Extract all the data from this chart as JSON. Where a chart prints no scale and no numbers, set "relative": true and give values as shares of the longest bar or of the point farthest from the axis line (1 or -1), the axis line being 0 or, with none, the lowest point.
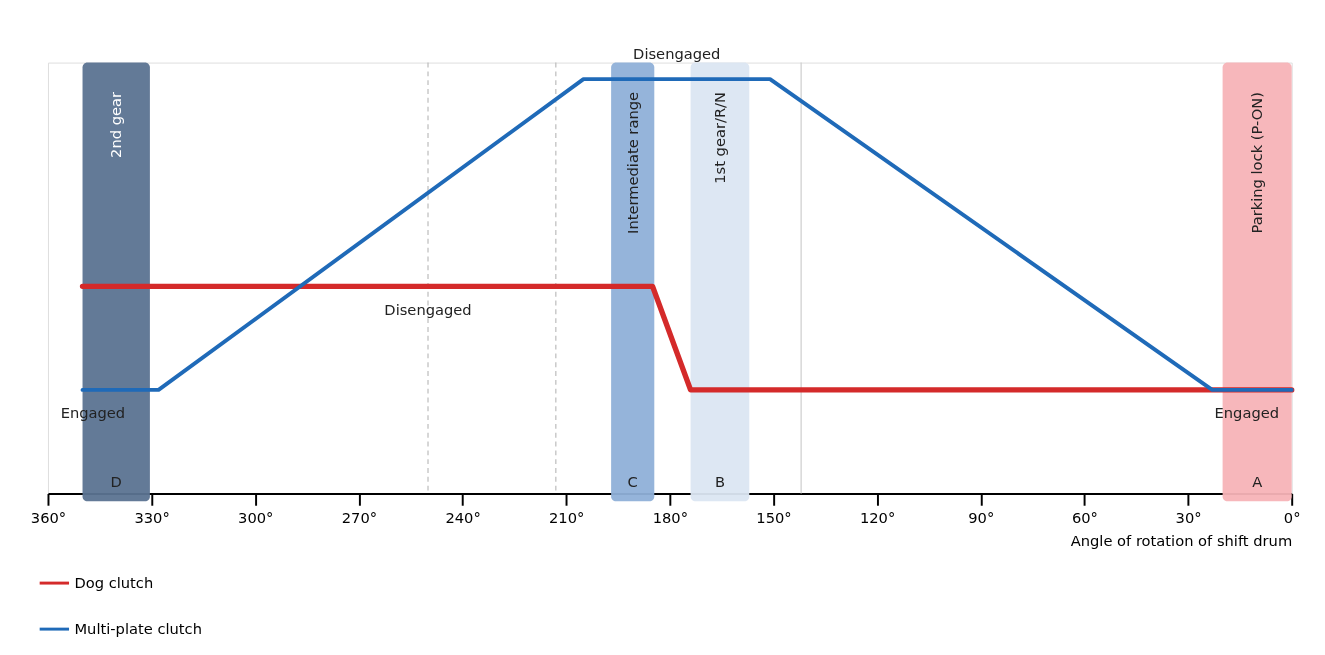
{
  "chart_data": {
    "type": "line",
    "relative": true,
    "xlabel": "Angle of rotation of shift drum",
    "xlim": [
      360,
      0
    ],
    "xticks": [
      {
        "value": 360,
        "label": "360°"
      },
      {
        "value": 330,
        "label": "330°"
      },
      {
        "value": 300,
        "label": "300°"
      },
      {
        "value": 270,
        "label": "270°"
      },
      {
        "value": 240,
        "label": "240°"
      },
      {
        "value": 210,
        "label": "210°"
      },
      {
        "value": 180,
        "label": "180°"
      },
      {
        "value": 150,
        "label": "150°"
      },
      {
        "value": 120,
        "label": "120°"
      },
      {
        "value": 90,
        "label": "90°"
      },
      {
        "value": 60,
        "label": "60°"
      },
      {
        "value": 30,
        "label": "30°"
      },
      {
        "value": 0,
        "label": "0°"
      }
    ],
    "series": [
      {
        "name": "Dog clutch",
        "color": "#d42a2a",
        "x": [
          350,
          185,
          174,
          0
        ],
        "values": [
          0.5,
          0.5,
          0.25,
          0.25
        ]
      },
      {
        "name": "Multi-plate clutch",
        "color": "#1f6ab8",
        "x": [
          350,
          328,
          205,
          151,
          23,
          0
        ],
        "values": [
          0.25,
          0.25,
          1,
          1,
          0.25,
          0.25
        ]
      }
    ],
    "bands": [
      {
        "axis": "x",
        "from": 350,
        "to": 330.5,
        "label": "2nd gear",
        "color": "#5b7391"
      },
      {
        "axis": "x",
        "from": 197,
        "to": 184.5,
        "label": "Intermediate range",
        "color": "#8fb0d8"
      },
      {
        "axis": "x",
        "from": 174,
        "to": 157,
        "label": "1st gear/R/N",
        "color": "#dbe6f2"
      },
      {
        "axis": "x",
        "from": 20,
        "to": 0,
        "label": "Parking lock (P-ON)",
        "color": "#f7b3b7"
      }
    ],
    "ref_lines": [
      {
        "axis": "x",
        "value": 250,
        "line_style": "dashed",
        "color": "#bbbbbb"
      },
      {
        "axis": "x",
        "value": 213,
        "line_style": "dashed",
        "color": "#bbbbbb"
      },
      {
        "axis": "x",
        "value": 142,
        "line_style": "solid",
        "color": "#cccccc"
      }
    ],
    "annotations": [
      {
        "text": "Disengaged",
        "x": 178,
        "y": 1
      },
      {
        "text": "Disengaged",
        "x": 250,
        "y": 0.5
      },
      {
        "text": "Engaged",
        "x": 347,
        "y": 0.25
      },
      {
        "text": "Engaged",
        "x": 13,
        "y": 0.25
      },
      "D",
      "C",
      "B",
      "A"
    ],
    "grid": false,
    "legend": "bottom left",
    "marker": "none",
    "line_style": "solid"
  }
}
